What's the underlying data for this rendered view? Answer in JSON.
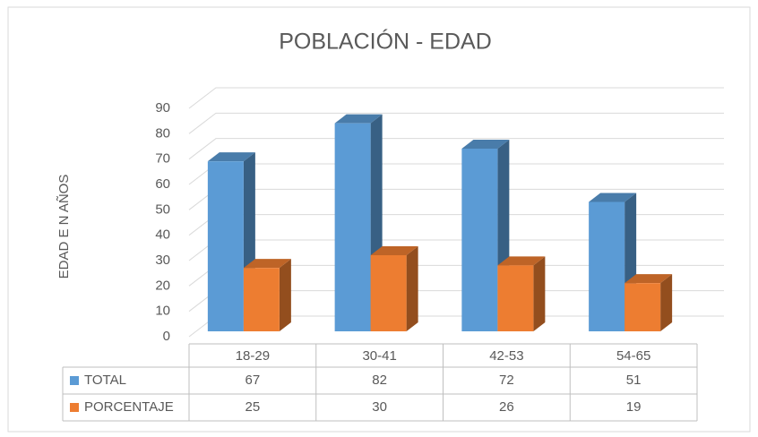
{
  "chart_data": {
    "type": "bar3d",
    "title": "POBLACIÓN - EDAD",
    "y_label": "EDAD E N AÑOS",
    "categories": [
      "18-29",
      "30-41",
      "42-53",
      "54-65"
    ],
    "series": [
      {
        "name": "TOTAL",
        "color": "#5b9bd5",
        "values": [
          67,
          82,
          72,
          51
        ]
      },
      {
        "name": "PORCENTAJE",
        "color": "#ed7d31",
        "values": [
          25,
          30,
          26,
          19
        ]
      }
    ],
    "ylim": [
      0,
      90
    ],
    "yticks": [
      0,
      10,
      20,
      30,
      40,
      50,
      60,
      70,
      80,
      90
    ],
    "grid": true,
    "data_table": true
  }
}
